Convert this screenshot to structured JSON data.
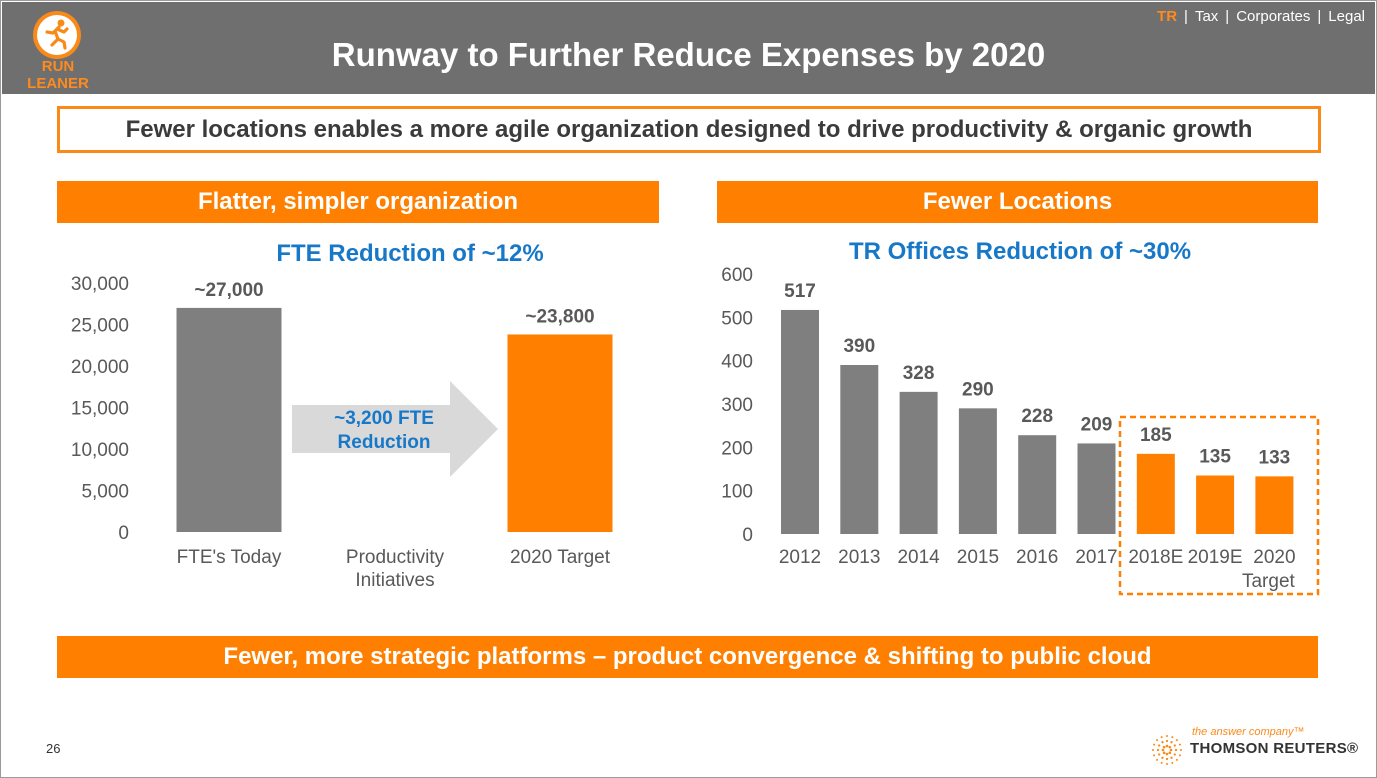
{
  "header": {
    "title": "Runway to Further Reduce Expenses by 2020",
    "logo_text_line1": "RUN",
    "logo_text_line2": "LEANER",
    "logo_icon": "runner-icon",
    "nav": [
      {
        "label": "TR",
        "active": true
      },
      {
        "label": "Tax",
        "active": false
      },
      {
        "label": "Corporates",
        "active": false
      },
      {
        "label": "Legal",
        "active": false
      }
    ]
  },
  "subtitle": "Fewer locations enables a more agile organization designed to drive productivity & organic growth",
  "left_section": {
    "header": "Flatter, simpler organization"
  },
  "right_section": {
    "header": "Fewer Locations"
  },
  "footer_banner": "Fewer, more strategic platforms – product convergence & shifting to public cloud",
  "page_number": "26",
  "brand": {
    "tagline": "the answer company™",
    "name": "THOMSON REUTERS®"
  },
  "colors": {
    "orange": "#ff7f00",
    "gray": "#7f7f7f",
    "blue": "#1878c8",
    "arrow": "#d9d9d9"
  },
  "chart_data": [
    {
      "type": "bar",
      "title": "FTE Reduction of ~12%",
      "categories": [
        "FTE's Today",
        "Productivity Initiatives",
        "2020 Target"
      ],
      "values": [
        27000,
        null,
        23800
      ],
      "data_labels": [
        "~27,000",
        "",
        "~23,800"
      ],
      "bar_colors": [
        "#7f7f7f",
        null,
        "#ff7f00"
      ],
      "ylim": [
        0,
        30000
      ],
      "yticks": [
        0,
        5000,
        10000,
        15000,
        20000,
        25000,
        30000
      ],
      "ytick_labels": [
        "0",
        "5,000",
        "10,000",
        "15,000",
        "20,000",
        "25,000",
        "30,000"
      ],
      "annotation": "~3,200 FTE Reduction",
      "annotation_lines": [
        "~3,200 FTE",
        "Reduction"
      ],
      "grid": false
    },
    {
      "type": "bar",
      "title": "TR Offices Reduction of ~30%",
      "categories": [
        "2012",
        "2013",
        "2014",
        "2015",
        "2016",
        "2017",
        "2018E",
        "2019E",
        "2020 Target"
      ],
      "values": [
        517,
        390,
        328,
        290,
        228,
        209,
        185,
        135,
        133
      ],
      "data_labels": [
        "517",
        "390",
        "328",
        "290",
        "228",
        "209",
        "185",
        "135",
        "133"
      ],
      "bar_colors": [
        "#7f7f7f",
        "#7f7f7f",
        "#7f7f7f",
        "#7f7f7f",
        "#7f7f7f",
        "#7f7f7f",
        "#ff7f00",
        "#ff7f00",
        "#ff7f00"
      ],
      "ylim": [
        0,
        600
      ],
      "yticks": [
        0,
        100,
        200,
        300,
        400,
        500,
        600
      ],
      "ytick_labels": [
        "0",
        "100",
        "200",
        "300",
        "400",
        "500",
        "600"
      ],
      "grid": false
    }
  ]
}
